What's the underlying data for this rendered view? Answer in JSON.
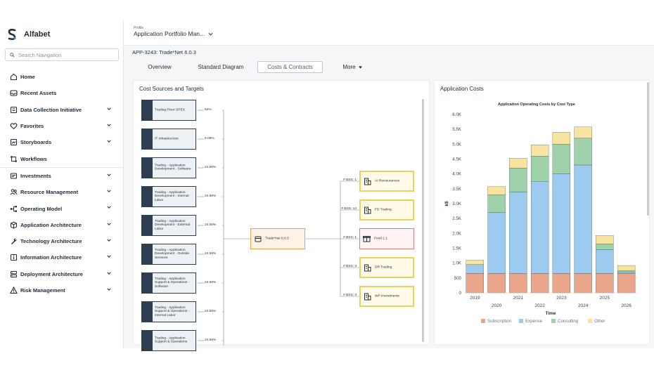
{
  "brand": {
    "name": "Alfabet"
  },
  "search": {
    "placeholder": "Search Navigation"
  },
  "nav": [
    {
      "id": "home",
      "label": "Home",
      "icon": "home-icon",
      "chevron": false
    },
    {
      "id": "recent",
      "label": "Recent Assets",
      "icon": "inbox-icon",
      "chevron": false
    },
    {
      "id": "data",
      "label": "Data Collection Initiative",
      "icon": "data-collection-icon",
      "chevron": true
    },
    {
      "id": "favorites",
      "label": "Favorites",
      "icon": "heart-icon",
      "chevron": true
    },
    {
      "id": "storyboards",
      "label": "Storyboards",
      "icon": "storyboard-icon",
      "chevron": true
    },
    {
      "id": "workflows",
      "label": "Workflows",
      "icon": "workflow-icon",
      "chevron": false
    },
    {
      "id": "investments",
      "label": "Investments",
      "icon": "investments-icon",
      "chevron": true
    },
    {
      "id": "resource",
      "label": "Resource Management",
      "icon": "users-icon",
      "chevron": true
    },
    {
      "id": "operating",
      "label": "Operating Model",
      "icon": "org-chart-icon",
      "chevron": true
    },
    {
      "id": "apparch",
      "label": "Application Architecture",
      "icon": "cube-icon",
      "chevron": true
    },
    {
      "id": "techarch",
      "label": "Technology Architecture",
      "icon": "wrench-icon",
      "chevron": true
    },
    {
      "id": "infoarch",
      "label": "Information Architecture",
      "icon": "info-icon",
      "chevron": true
    },
    {
      "id": "deparch",
      "label": "Deployment Architecture",
      "icon": "server-icon",
      "chevron": true
    },
    {
      "id": "risk",
      "label": "Risk Management",
      "icon": "warning-icon",
      "chevron": true
    }
  ],
  "header": {
    "profile_label": "Profile",
    "profile_value": "Application Portfolio Man..."
  },
  "breadcrumb": "APP-3243: Trade*Net 6.0.3",
  "tabs": [
    "Overview",
    "Standard Diagram",
    "Costs & Contracts",
    "More"
  ],
  "active_tab": "Costs & Contracts",
  "cost_sources": {
    "title": "Cost Sources and Targets",
    "sources": [
      {
        "label": "Trading Floor OPEX",
        "pct": "54%"
      },
      {
        "label": "IT Infrastructure",
        "pct": "9.09%"
      },
      {
        "label": "Trading - Application Development - Software",
        "pct": "24.56%"
      },
      {
        "label": "Trading - Application Development - Internal Labor",
        "pct": "24.56%"
      },
      {
        "label": "Trading - Application Development - External Labor",
        "pct": "24.56%"
      },
      {
        "label": "Trading - Application Development - Outside Services",
        "pct": "24.56%"
      },
      {
        "label": "Trading - Application Support & Operations - Software",
        "pct": "24.56%"
      },
      {
        "label": "Trading - Application Support & Operations - Internal Labor",
        "pct": "24.56%"
      },
      {
        "label": "Trading - Application Support & Operations",
        "pct": "24.56%"
      }
    ],
    "center": "Trade*Net 6.0.3",
    "targets": [
      {
        "label": "AI Reinsurances",
        "bss": "# BSS: 1",
        "style": "yellow"
      },
      {
        "label": "FD Trading",
        "bss": "# BSS: 14",
        "style": "yellow"
      },
      {
        "label": "Fond 1.1",
        "bss": "# BSS: 1",
        "style": "red"
      },
      {
        "label": "DR Trading",
        "bss": "# BSS: 3",
        "style": "yellow"
      },
      {
        "label": "WP Investments",
        "bss": "# BSS: 3",
        "style": "yellow"
      }
    ]
  },
  "app_costs": {
    "title": "Application Costs"
  },
  "chart_data": {
    "type": "bar",
    "stacked": true,
    "title": "Application Operating Costs by Cost Type",
    "xlabel": "Time",
    "ylabel": "k$",
    "categories": [
      "2019",
      "2020",
      "2021",
      "2022",
      "2023",
      "2024",
      "2025",
      "2026"
    ],
    "ylim": [
      0,
      6000
    ],
    "yticks": [
      "0",
      "500",
      "1.0K",
      "1.5K",
      "2.0K",
      "2.5K",
      "3.0K",
      "3.5K",
      "4.0K",
      "4.5K",
      "5.0K",
      "5.5K",
      "6.0K"
    ],
    "series": [
      {
        "name": "Subscription",
        "color": "#e9a68b",
        "values": [
          650,
          650,
          650,
          650,
          650,
          650,
          650,
          650
        ]
      },
      {
        "name": "Expense",
        "color": "#9ccbef",
        "values": [
          300,
          2050,
          2750,
          3100,
          3350,
          3650,
          800,
          50
        ]
      },
      {
        "name": "Consulting",
        "color": "#9fd2aa",
        "values": [
          0,
          600,
          800,
          850,
          1000,
          900,
          200,
          50
        ]
      },
      {
        "name": "Other",
        "color": "#f8e4a0",
        "values": [
          150,
          270,
          330,
          380,
          400,
          380,
          280,
          170
        ]
      }
    ],
    "legend": "bottom"
  }
}
